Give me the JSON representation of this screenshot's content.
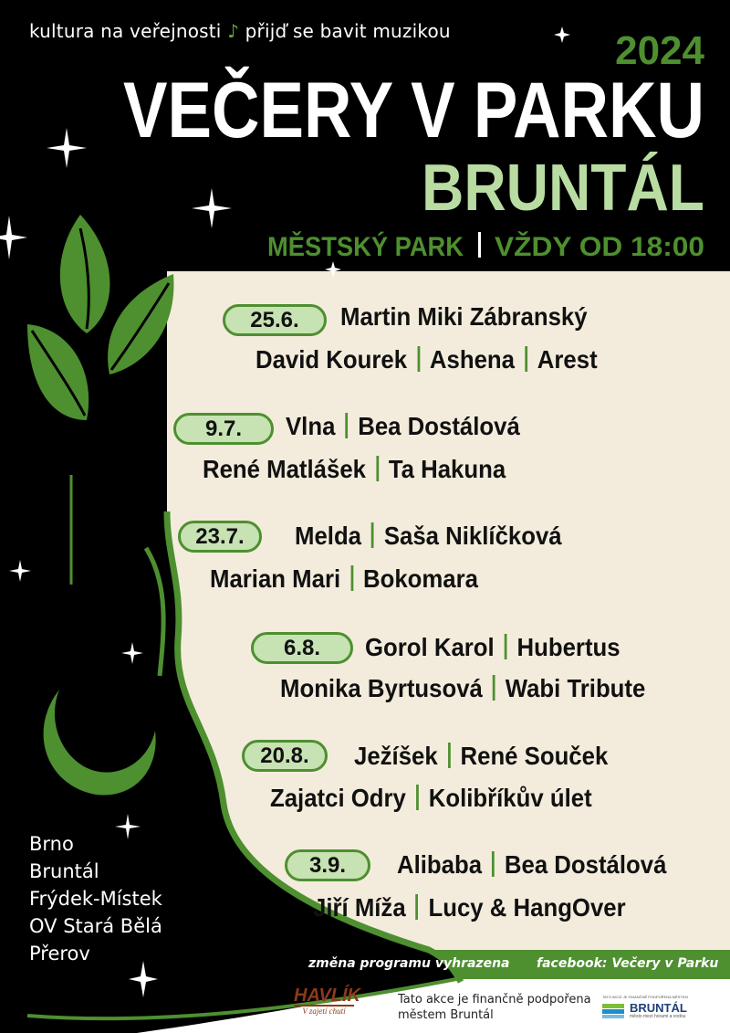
{
  "header": {
    "tagline_left": "kultura na veřejnosti",
    "tagline_note": "♪",
    "tagline_right": "přijď se bavit muzikou",
    "year": "2024",
    "title": "VEČERY V PARKU",
    "city": "BRUNTÁL",
    "venue": "MĚSTSKÝ PARK",
    "time": "VŽDY OD 18:00"
  },
  "events": [
    {
      "date": "25.6.",
      "line1": [
        "Martin Miki Zábranský"
      ],
      "line2": [
        "David Kourek",
        "Ashena",
        "Arest"
      ]
    },
    {
      "date": "9.7.",
      "line1": [
        "Vlna",
        "Bea Dostálová"
      ],
      "line2": [
        "René Matlášek",
        "Ta Hakuna"
      ]
    },
    {
      "date": "23.7.",
      "line1": [
        "Melda",
        "Saša Niklíčková"
      ],
      "line2": [
        "Marian Mari",
        "Bokomara"
      ]
    },
    {
      "date": "6.8.",
      "line1": [
        "Gorol Karol",
        "Hubertus"
      ],
      "line2": [
        "Monika Byrtusová",
        "Wabi Tribute"
      ]
    },
    {
      "date": "20.8.",
      "line1": [
        "Ježíšek",
        "René Souček"
      ],
      "line2": [
        "Zajatci Odry",
        "Kolibříkův úlet"
      ]
    },
    {
      "date": "3.9.",
      "line1": [
        "Alibaba",
        "Bea Dostálová"
      ],
      "line2": [
        "Jiří Míža",
        "Lucy & HangOver"
      ]
    }
  ],
  "cities": [
    "Brno",
    "Bruntál",
    "Frýdek-Místek",
    "OV Stará Bělá",
    "Přerov"
  ],
  "notice": "změna programu vyhrazena",
  "facebook": "facebook: Večery v Parku",
  "footer": {
    "sponsor_logo": "HAVLÍK",
    "sponsor_slogan": "V zajetí chutí",
    "funding_text_1": "Tato akce je finančně podpořena",
    "funding_text_2": "městem Bruntál",
    "city_logo_top": "TATO AKCE JE FINANČNĚ PODPOŘENA MĚSTEM",
    "city_logo_name": "BRUNTÁL",
    "city_logo_slogan": "město mezi horami a vodou"
  },
  "colors": {
    "green": "#4e8f30",
    "light_green": "#b9dca2",
    "cream": "#f3ecdc",
    "pill": "#c7e2b3",
    "sponsor_brown": "#8b3a1a"
  }
}
